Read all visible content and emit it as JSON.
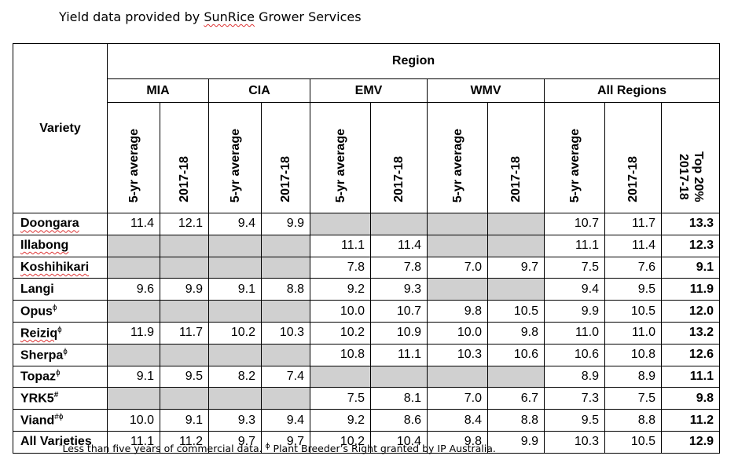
{
  "caption": {
    "before": "Yield data provided by ",
    "brand": "SunRice",
    "after": " Grower Services"
  },
  "header": {
    "variety": "Variety",
    "region": "Region",
    "regions": [
      "MIA",
      "CIA",
      "EMV",
      "WMV",
      "All Regions"
    ],
    "col_5yr": "5-yr average",
    "col_1718": "2017-18",
    "col_top_line1": "2017-18",
    "col_top_line2": "Top 20%"
  },
  "rows": [
    {
      "name": "Doongara",
      "mark": "",
      "squig": true,
      "values": [
        "11.4",
        "12.1",
        "9.4",
        "9.9",
        "",
        "",
        "",
        "",
        "10.7",
        "11.7",
        "13.3"
      ]
    },
    {
      "name": "Illabong",
      "mark": "",
      "squig": true,
      "values": [
        "",
        "",
        "",
        "",
        "11.1",
        "11.4",
        "",
        "",
        "11.1",
        "11.4",
        "12.3"
      ]
    },
    {
      "name": "Koshihikari",
      "mark": "",
      "squig": true,
      "values": [
        "",
        "",
        "",
        "",
        "7.8",
        "7.8",
        "7.0",
        "9.7",
        "7.5",
        "7.6",
        "9.1"
      ]
    },
    {
      "name": "Langi",
      "mark": "",
      "squig": false,
      "values": [
        "9.6",
        "9.9",
        "9.1",
        "8.8",
        "9.2",
        "9.3",
        "",
        "",
        "9.4",
        "9.5",
        "11.9"
      ]
    },
    {
      "name": "Opus",
      "mark": "ɸ",
      "squig": false,
      "values": [
        "",
        "",
        "",
        "",
        "10.0",
        "10.7",
        "9.8",
        "10.5",
        "9.9",
        "10.5",
        "12.0"
      ]
    },
    {
      "name": "Reiziq",
      "mark": "ɸ",
      "squig": true,
      "values": [
        "11.9",
        "11.7",
        "10.2",
        "10.3",
        "10.2",
        "10.9",
        "10.0",
        "9.8",
        "11.0",
        "11.0",
        "13.2"
      ]
    },
    {
      "name": "Sherpa",
      "mark": "ɸ",
      "squig": false,
      "values": [
        "",
        "",
        "",
        "",
        "10.8",
        "11.1",
        "10.3",
        "10.6",
        "10.6",
        "10.8",
        "12.6"
      ]
    },
    {
      "name": "Topaz",
      "mark": "ɸ",
      "squig": false,
      "values": [
        "9.1",
        "9.5",
        "8.2",
        "7.4",
        "",
        "",
        "",
        "",
        "8.9",
        "8.9",
        "11.1"
      ]
    },
    {
      "name": "YRK5",
      "mark": "#",
      "squig": false,
      "values": [
        "",
        "",
        "",
        "",
        "7.5",
        "8.1",
        "7.0",
        "6.7",
        "7.3",
        "7.5",
        "9.8"
      ]
    },
    {
      "name": "Viand",
      "mark": "#ɸ",
      "squig": false,
      "values": [
        "10.0",
        "9.1",
        "9.3",
        "9.4",
        "9.2",
        "8.6",
        "8.4",
        "8.8",
        "9.5",
        "8.8",
        "11.2"
      ]
    },
    {
      "name": "All Varieties",
      "mark": "",
      "squig": false,
      "values": [
        "11.1",
        "11.2",
        "9.7",
        "9.7",
        "10.2",
        "10.4",
        "9.8",
        "9.9",
        "10.3",
        "10.5",
        "12.9"
      ]
    }
  ],
  "footnote": {
    "star": "*",
    "text1": "Less than five years of commercial data. ",
    "phi": "ɸ",
    "text2": " Plant Breeder’s Right granted by IP Australia."
  },
  "colors": {
    "shade": "#d0d0d0",
    "squiggle": "#d33"
  }
}
